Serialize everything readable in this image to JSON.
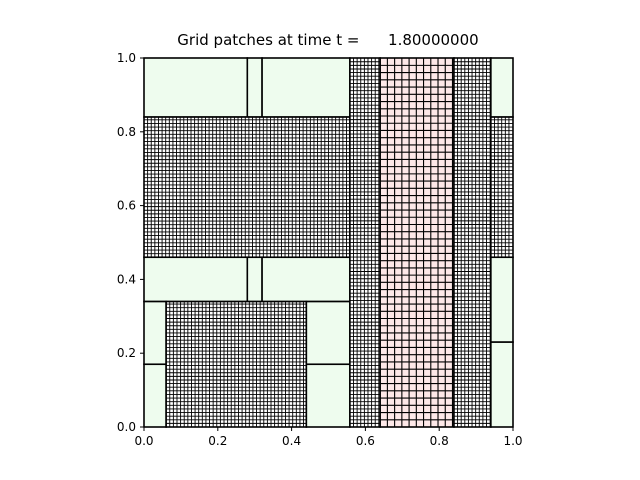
{
  "chart_data": {
    "type": "grid-patch-plot",
    "title": "Grid patches at time t =      1.80000000",
    "xlabel": "",
    "ylabel": "",
    "xlim": [
      0,
      1
    ],
    "ylim": [
      0,
      1
    ],
    "x_ticks": [
      "0.0",
      "0.2",
      "0.4",
      "0.6",
      "0.8",
      "1.0"
    ],
    "y_ticks": [
      "0.0",
      "0.2",
      "0.4",
      "0.6",
      "0.8",
      "1.0"
    ],
    "grid": false,
    "colors": {
      "coarse": "#eefcee",
      "medium": "#ffffff",
      "fine_pink": "#fde8e8",
      "line": "#000000"
    },
    "patches": [
      {
        "x0": 0.0,
        "x1": 0.28,
        "y0": 0.84,
        "y1": 1.0,
        "level": "coarse",
        "cell": 0
      },
      {
        "x0": 0.28,
        "x1": 0.32,
        "y0": 0.84,
        "y1": 1.0,
        "level": "coarse",
        "cell": 0
      },
      {
        "x0": 0.32,
        "x1": 0.558,
        "y0": 0.84,
        "y1": 1.0,
        "level": "coarse",
        "cell": 0
      },
      {
        "x0": 0.0,
        "x1": 0.558,
        "y0": 0.46,
        "y1": 0.84,
        "level": "fine",
        "cell": 0.0098
      },
      {
        "x0": 0.0,
        "x1": 0.28,
        "y0": 0.34,
        "y1": 0.46,
        "level": "coarse",
        "cell": 0
      },
      {
        "x0": 0.28,
        "x1": 0.32,
        "y0": 0.34,
        "y1": 0.46,
        "level": "coarse",
        "cell": 0
      },
      {
        "x0": 0.32,
        "x1": 0.558,
        "y0": 0.34,
        "y1": 0.46,
        "level": "coarse",
        "cell": 0
      },
      {
        "x0": 0.0,
        "x1": 0.06,
        "y0": 0.17,
        "y1": 0.34,
        "level": "coarse",
        "cell": 0
      },
      {
        "x0": 0.0,
        "x1": 0.06,
        "y0": 0.0,
        "y1": 0.17,
        "level": "coarse",
        "cell": 0
      },
      {
        "x0": 0.06,
        "x1": 0.44,
        "y0": 0.0,
        "y1": 0.34,
        "level": "fine",
        "cell": 0.0098
      },
      {
        "x0": 0.44,
        "x1": 0.558,
        "y0": 0.17,
        "y1": 0.34,
        "level": "coarse",
        "cell": 0
      },
      {
        "x0": 0.44,
        "x1": 0.558,
        "y0": 0.0,
        "y1": 0.17,
        "level": "coarse",
        "cell": 0
      },
      {
        "x0": 0.558,
        "x1": 0.64,
        "y0": 0.0,
        "y1": 1.0,
        "level": "fine",
        "cell": 0.0098
      },
      {
        "x0": 0.64,
        "x1": 0.84,
        "y0": 0.0,
        "y1": 1.0,
        "level": "medium",
        "cell": 0.0196
      },
      {
        "x0": 0.84,
        "x1": 0.94,
        "y0": 0.0,
        "y1": 1.0,
        "level": "fine",
        "cell": 0.0098
      },
      {
        "x0": 0.94,
        "x1": 1.0,
        "y0": 0.84,
        "y1": 1.0,
        "level": "coarse",
        "cell": 0
      },
      {
        "x0": 0.94,
        "x1": 1.0,
        "y0": 0.46,
        "y1": 0.84,
        "level": "fine",
        "cell": 0.0098
      },
      {
        "x0": 0.94,
        "x1": 1.0,
        "y0": 0.23,
        "y1": 0.46,
        "level": "coarse",
        "cell": 0
      },
      {
        "x0": 0.94,
        "x1": 1.0,
        "y0": 0.0,
        "y1": 0.23,
        "level": "coarse",
        "cell": 0
      }
    ]
  }
}
